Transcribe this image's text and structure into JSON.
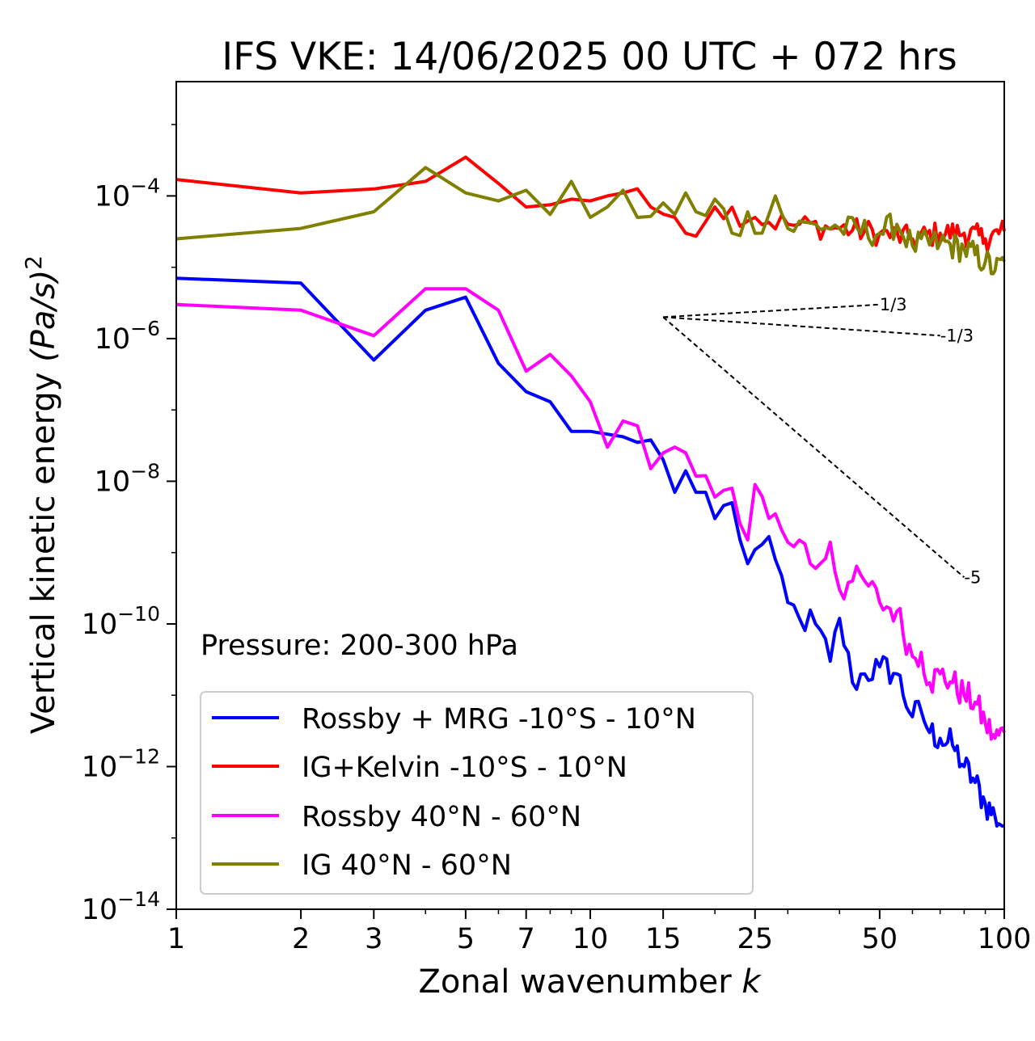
{
  "chart_data": {
    "type": "line",
    "title": "IFS VKE: 14/06/2025 00 UTC + 072 hrs",
    "xlabel": "Zonal wavenumber",
    "xlabel_var": "k",
    "ylabel": "Vertical kinetic energy",
    "ylabel_unit": "(Pa/s)",
    "ylabel_power": "2",
    "xscale": "log",
    "yscale": "log",
    "xlim": [
      1,
      100
    ],
    "ylim": [
      1e-14,
      0.004
    ],
    "xticks": [
      1,
      2,
      3,
      5,
      7,
      10,
      15,
      25,
      50,
      100
    ],
    "xtick_labels": [
      "1",
      "2",
      "3",
      "5",
      "7",
      "10",
      "15",
      "25",
      "50",
      "100"
    ],
    "yticks": [
      1e-14,
      1e-12,
      1e-10,
      1e-08,
      1e-06,
      0.0001
    ],
    "ytick_base": "10",
    "ytick_exponents": [
      "−14",
      "−12",
      "−10",
      "−8",
      "−6",
      "−4"
    ],
    "grid": false,
    "legend_position": "lower-left",
    "annotation": "Pressure: 200-300 hPa",
    "series": [
      {
        "name": "Rossby + MRG -10°S - 10°N",
        "color": "#0000ff",
        "anchors": [
          [
            1,
            7e-06
          ],
          [
            2,
            6e-06
          ],
          [
            3,
            5e-07
          ],
          [
            4,
            2.5e-06
          ],
          [
            5,
            3.8e-06
          ],
          [
            6,
            4.5e-07
          ],
          [
            7,
            1.8e-07
          ],
          [
            8,
            1.3e-07
          ],
          [
            9,
            5e-08
          ],
          [
            10,
            5e-08
          ],
          [
            12,
            4.2e-08
          ],
          [
            13,
            3.5e-08
          ],
          [
            14,
            3.8e-08
          ],
          [
            15,
            2e-08
          ],
          [
            16,
            7e-09
          ],
          [
            17,
            1.4e-08
          ],
          [
            18,
            7e-09
          ],
          [
            19,
            7e-09
          ],
          [
            20,
            3e-09
          ],
          [
            22,
            5e-09
          ],
          [
            24,
            7e-10
          ],
          [
            26,
            1.3e-09
          ],
          [
            28,
            8e-10
          ],
          [
            30,
            2e-10
          ],
          [
            32,
            1.2e-10
          ],
          [
            35,
            1e-10
          ],
          [
            38,
            3e-11
          ],
          [
            40,
            1.2e-10
          ],
          [
            43,
            1.5e-11
          ],
          [
            46,
            2e-11
          ],
          [
            50,
            2.5e-11
          ],
          [
            55,
            2e-11
          ],
          [
            60,
            5e-12
          ],
          [
            63,
            6e-12
          ],
          [
            66,
            3e-12
          ],
          [
            70,
            2.5e-12
          ],
          [
            75,
            2e-12
          ],
          [
            80,
            1e-12
          ],
          [
            85,
            6e-13
          ],
          [
            90,
            3e-13
          ],
          [
            95,
            2e-13
          ],
          [
            100,
            1.5e-13
          ]
        ],
        "noise": 0.22
      },
      {
        "name": "IG+Kelvin -10°S - 10°N",
        "color": "#ff0000",
        "anchors": [
          [
            1,
            0.00017
          ],
          [
            2,
            0.00011
          ],
          [
            3,
            0.000125
          ],
          [
            4,
            0.00016
          ],
          [
            5,
            0.00035
          ],
          [
            6,
            0.00015
          ],
          [
            7,
            7e-05
          ],
          [
            8,
            7.5e-05
          ],
          [
            9,
            9e-05
          ],
          [
            10,
            8.5e-05
          ],
          [
            11,
            0.0001
          ],
          [
            12,
            0.00011
          ],
          [
            14,
            7e-05
          ],
          [
            16,
            5e-05
          ],
          [
            17,
            3e-05
          ],
          [
            20,
            7e-05
          ],
          [
            25,
            5e-05
          ],
          [
            30,
            4e-05
          ],
          [
            40,
            3.5e-05
          ],
          [
            50,
            3e-05
          ],
          [
            60,
            2.5e-05
          ],
          [
            70,
            3e-05
          ],
          [
            80,
            3e-05
          ],
          [
            90,
            2.5e-05
          ],
          [
            100,
            3.2e-05
          ]
        ],
        "noise": 0.18
      },
      {
        "name": "Rossby 40°N - 60°N",
        "color": "#ff00ff",
        "anchors": [
          [
            1,
            3e-06
          ],
          [
            2,
            2.5e-06
          ],
          [
            3,
            1.1e-06
          ],
          [
            4,
            5e-06
          ],
          [
            5,
            5e-06
          ],
          [
            6,
            2.5e-06
          ],
          [
            7,
            3.5e-07
          ],
          [
            8,
            6e-07
          ],
          [
            9,
            3e-07
          ],
          [
            10,
            1.3e-07
          ],
          [
            11,
            3e-08
          ],
          [
            12,
            7e-08
          ],
          [
            13,
            6e-08
          ],
          [
            14,
            1.5e-08
          ],
          [
            15,
            2.5e-08
          ],
          [
            17,
            2.5e-08
          ],
          [
            19,
            1.2e-08
          ],
          [
            20,
            6e-09
          ],
          [
            22,
            8e-09
          ],
          [
            24,
            1.5e-09
          ],
          [
            25,
            9e-09
          ],
          [
            27,
            3e-09
          ],
          [
            28,
            3.5e-09
          ],
          [
            30,
            1.4e-09
          ],
          [
            32,
            1.5e-09
          ],
          [
            35,
            6e-10
          ],
          [
            38,
            1.4e-09
          ],
          [
            40,
            3e-10
          ],
          [
            43,
            4e-10
          ],
          [
            46,
            4e-10
          ],
          [
            50,
            2e-10
          ],
          [
            55,
            1.5e-10
          ],
          [
            60,
            3.5e-11
          ],
          [
            63,
            4e-11
          ],
          [
            66,
            1.5e-11
          ],
          [
            70,
            2e-11
          ],
          [
            75,
            1.5e-11
          ],
          [
            80,
            1e-11
          ],
          [
            85,
            8e-12
          ],
          [
            90,
            4e-12
          ],
          [
            95,
            2.5e-12
          ],
          [
            100,
            3e-12
          ]
        ],
        "noise": 0.22
      },
      {
        "name": "IG 40°N - 60°N",
        "color": "#808000",
        "anchors": [
          [
            1,
            2.5e-05
          ],
          [
            2,
            3.5e-05
          ],
          [
            3,
            6e-05
          ],
          [
            4,
            0.00025
          ],
          [
            5,
            0.00011
          ],
          [
            6,
            8.5e-05
          ],
          [
            7,
            0.00012
          ],
          [
            8,
            5.5e-05
          ],
          [
            9,
            0.00016
          ],
          [
            10,
            5e-05
          ],
          [
            11,
            7e-05
          ],
          [
            12,
            0.00012
          ],
          [
            13,
            5e-05
          ],
          [
            15,
            8e-05
          ],
          [
            16,
            5.5e-05
          ],
          [
            17,
            0.00011
          ],
          [
            18,
            6e-05
          ],
          [
            20,
            9e-05
          ],
          [
            22,
            3e-05
          ],
          [
            24,
            6e-05
          ],
          [
            26,
            3e-05
          ],
          [
            28,
            0.0001
          ],
          [
            30,
            3.5e-05
          ],
          [
            35,
            4e-05
          ],
          [
            40,
            3.5e-05
          ],
          [
            50,
            3e-05
          ],
          [
            55,
            4e-05
          ],
          [
            60,
            2e-05
          ],
          [
            70,
            2.2e-05
          ],
          [
            80,
            1.8e-05
          ],
          [
            90,
            1.2e-05
          ],
          [
            95,
            9e-06
          ],
          [
            100,
            1.2e-05
          ]
        ],
        "noise": 0.2
      }
    ],
    "reference_slopes": [
      {
        "label": "1/3",
        "from": [
          15,
          2e-06
        ],
        "to": [
          50,
          3e-06
        ]
      },
      {
        "label": "-1/3",
        "from": [
          15,
          2e-06
        ],
        "to": [
          70,
          1.1e-06
        ]
      },
      {
        "label": "-5",
        "from": [
          15,
          2e-06
        ],
        "to": [
          80,
          4.5e-10
        ]
      }
    ]
  }
}
